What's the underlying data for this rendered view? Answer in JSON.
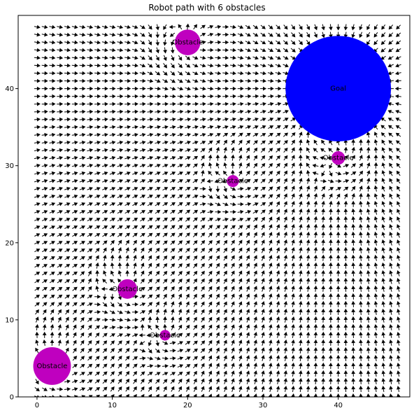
{
  "chart_data": {
    "type": "scatter",
    "title": "Robot path with 6 obstacles",
    "xlabel": "",
    "ylabel": "",
    "xlim": [
      -2.5,
      49.5
    ],
    "ylim": [
      0,
      49.5
    ],
    "x_ticks": [
      0,
      10,
      20,
      30,
      40
    ],
    "y_ticks": [
      0,
      10,
      20,
      30,
      40
    ],
    "grid": false,
    "goal": {
      "label": "Goal",
      "x": 40,
      "y": 40,
      "radius": 7,
      "color": "#0000ff"
    },
    "obstacles": [
      {
        "label": "Obstacle",
        "x": 20,
        "y": 46,
        "radius": 1.7
      },
      {
        "label": "Obstacle",
        "x": 40,
        "y": 31,
        "radius": 0.9
      },
      {
        "label": "Obstacle",
        "x": 26,
        "y": 28,
        "radius": 0.8
      },
      {
        "label": "Obstacle",
        "x": 12,
        "y": 14,
        "radius": 1.3
      },
      {
        "label": "Obstacle",
        "x": 17,
        "y": 8,
        "radius": 0.7
      },
      {
        "label": "Obstacle",
        "x": 2,
        "y": 4,
        "radius": 2.5
      }
    ],
    "obstacle_color": "#bf00bf",
    "field": {
      "x_range": [
        0,
        48
      ],
      "y_range": [
        0,
        48
      ],
      "step": 1,
      "arrow_color": "#000000"
    }
  }
}
